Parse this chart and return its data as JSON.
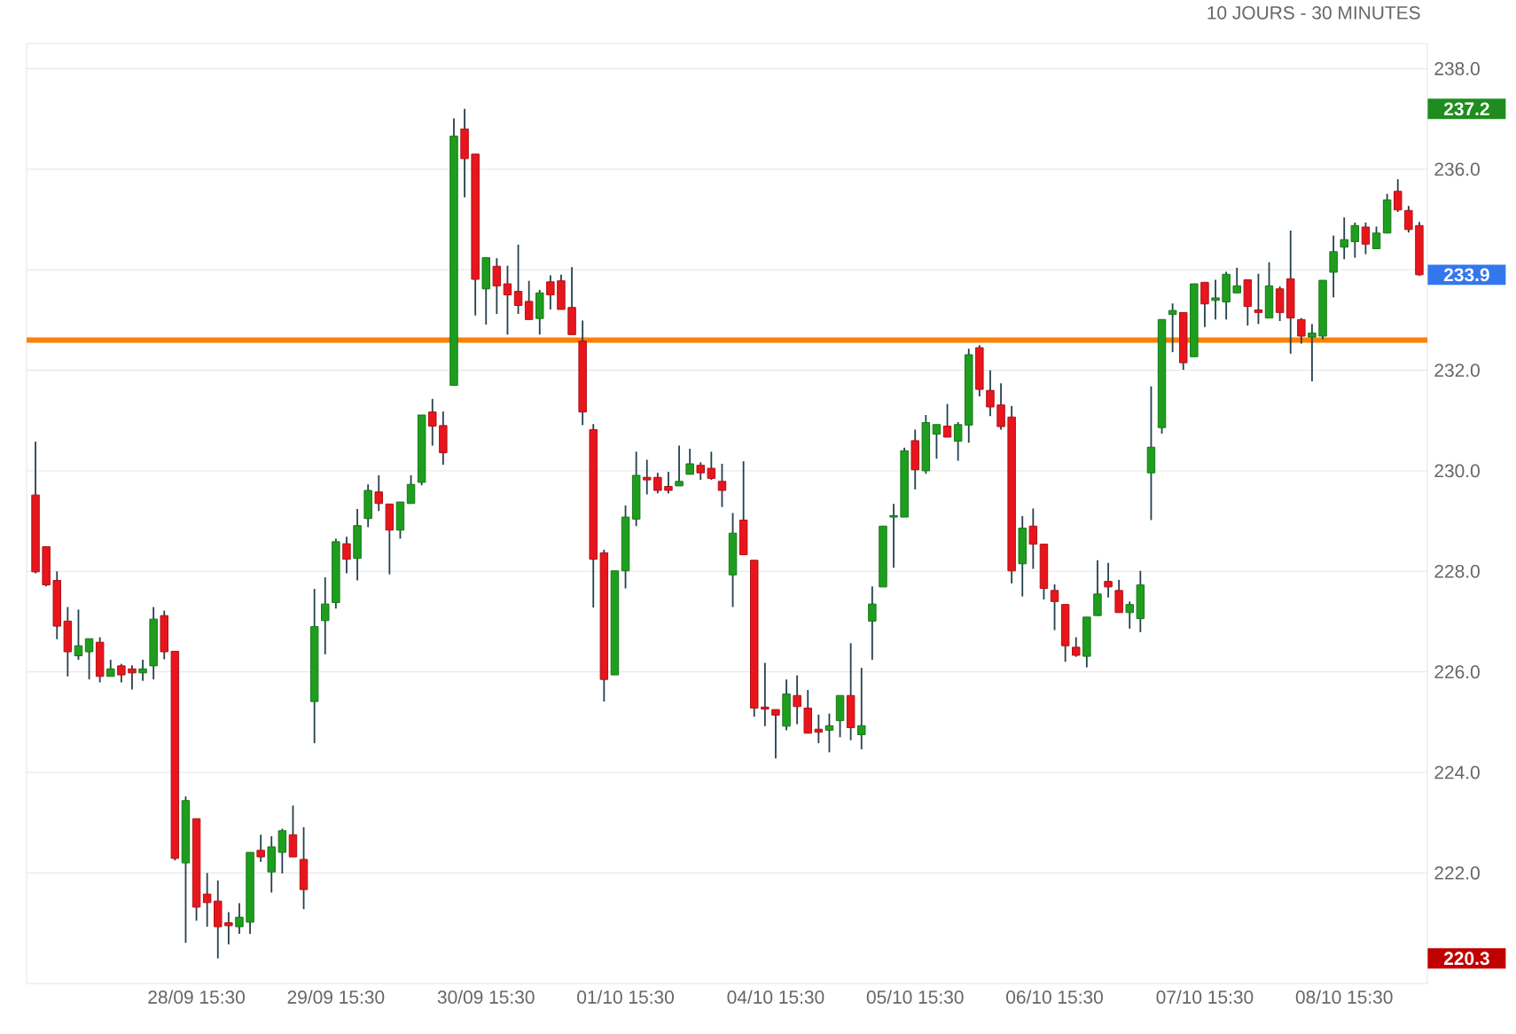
{
  "chart_data": {
    "type": "candlestick",
    "title": "10 JOURS - 30 MINUTES",
    "categories": [
      null,
      null,
      null,
      null,
      null,
      null,
      null,
      null,
      null,
      null,
      null,
      null,
      null,
      null,
      null,
      "28/09 15:30",
      null,
      null,
      null,
      null,
      null,
      null,
      null,
      null,
      null,
      null,
      null,
      null,
      "29/09 15:30",
      null,
      null,
      null,
      null,
      null,
      null,
      null,
      null,
      null,
      null,
      null,
      null,
      null,
      "30/09 15:30",
      null,
      null,
      null,
      null,
      null,
      null,
      null,
      null,
      null,
      null,
      null,
      null,
      "01/10 15:30",
      null,
      null,
      null,
      null,
      null,
      null,
      null,
      null,
      null,
      null,
      null,
      null,
      null,
      "04/10 15:30",
      null,
      null,
      null,
      null,
      null,
      null,
      null,
      null,
      null,
      null,
      null,
      null,
      "05/10 15:30",
      null,
      null,
      null,
      null,
      null,
      null,
      null,
      null,
      null,
      null,
      null,
      null,
      "06/10 15:30",
      null,
      null,
      null,
      null,
      null,
      null,
      null,
      null,
      null,
      null,
      null,
      null,
      null,
      "07/10 15:30",
      null,
      null,
      null,
      null,
      null,
      null,
      null,
      null,
      null,
      null,
      null,
      null,
      "08/10 15:30",
      null,
      null,
      null,
      null,
      null,
      null,
      null
    ],
    "ohlc": [
      [
        229.52,
        230.58,
        227.96,
        227.99
      ],
      [
        228.49,
        228.5,
        227.7,
        227.73
      ],
      [
        227.82,
        228.0,
        226.65,
        226.91
      ],
      [
        227.01,
        227.29,
        225.91,
        226.4
      ],
      [
        226.32,
        227.24,
        226.24,
        226.52
      ],
      [
        226.4,
        226.66,
        225.85,
        226.66
      ],
      [
        226.59,
        226.69,
        225.79,
        225.91
      ],
      [
        225.91,
        226.24,
        225.91,
        226.06
      ],
      [
        226.12,
        226.16,
        225.79,
        225.94
      ],
      [
        226.06,
        226.13,
        225.65,
        225.98
      ],
      [
        225.98,
        226.24,
        225.82,
        226.06
      ],
      [
        226.12,
        227.29,
        225.85,
        227.05
      ],
      [
        227.12,
        227.22,
        226.25,
        226.4
      ],
      [
        226.41,
        226.41,
        222.25,
        222.29
      ],
      [
        222.2,
        223.52,
        220.61,
        223.44
      ],
      [
        223.08,
        223.08,
        221.05,
        221.32
      ],
      [
        221.58,
        222.0,
        220.93,
        221.41
      ],
      [
        221.44,
        221.85,
        220.3,
        220.93
      ],
      [
        221.01,
        221.22,
        220.58,
        220.95
      ],
      [
        220.93,
        221.4,
        220.79,
        221.12
      ],
      [
        221.02,
        222.41,
        220.79,
        222.41
      ],
      [
        222.45,
        222.76,
        222.22,
        222.32
      ],
      [
        222.02,
        222.73,
        221.61,
        222.52
      ],
      [
        222.41,
        222.88,
        221.99,
        222.84
      ],
      [
        222.76,
        223.34,
        222.32,
        222.32
      ],
      [
        222.27,
        222.91,
        221.28,
        221.67
      ],
      [
        225.41,
        227.65,
        224.58,
        226.9
      ],
      [
        227.02,
        227.88,
        226.35,
        227.35
      ],
      [
        227.38,
        228.65,
        227.26,
        228.59
      ],
      [
        228.55,
        228.69,
        227.96,
        228.24
      ],
      [
        228.26,
        229.24,
        227.82,
        228.91
      ],
      [
        229.05,
        229.73,
        228.88,
        229.61
      ],
      [
        229.58,
        229.91,
        229.2,
        229.35
      ],
      [
        229.34,
        229.34,
        227.94,
        228.82
      ],
      [
        228.82,
        229.38,
        228.65,
        229.38
      ],
      [
        229.35,
        229.91,
        229.35,
        229.73
      ],
      [
        229.77,
        231.11,
        229.71,
        231.11
      ],
      [
        231.17,
        231.43,
        230.5,
        230.89
      ],
      [
        230.9,
        231.18,
        230.12,
        230.36
      ],
      [
        231.7,
        237.01,
        231.7,
        236.66
      ],
      [
        236.8,
        237.2,
        235.44,
        236.21
      ],
      [
        236.3,
        236.3,
        233.09,
        233.81
      ],
      [
        233.62,
        234.24,
        232.91,
        234.24
      ],
      [
        234.07,
        234.23,
        233.12,
        233.68
      ],
      [
        233.72,
        234.08,
        232.71,
        233.5
      ],
      [
        233.57,
        234.5,
        233.12,
        233.29
      ],
      [
        233.37,
        233.78,
        233.01,
        233.01
      ],
      [
        233.03,
        233.6,
        232.71,
        233.54
      ],
      [
        233.76,
        233.89,
        233.21,
        233.5
      ],
      [
        233.78,
        233.9,
        233.21,
        233.21
      ],
      [
        233.25,
        234.05,
        232.71,
        232.71
      ],
      [
        232.58,
        232.99,
        230.91,
        231.17
      ],
      [
        230.82,
        230.93,
        227.28,
        228.24
      ],
      [
        228.37,
        228.43,
        225.41,
        225.85
      ],
      [
        225.94,
        228.01,
        225.94,
        228.01
      ],
      [
        228.01,
        229.31,
        227.66,
        229.08
      ],
      [
        229.04,
        230.38,
        228.9,
        229.91
      ],
      [
        229.87,
        230.22,
        229.53,
        229.82
      ],
      [
        229.87,
        229.96,
        229.55,
        229.61
      ],
      [
        229.69,
        229.98,
        229.55,
        229.61
      ],
      [
        229.7,
        230.5,
        229.7,
        229.79
      ],
      [
        229.93,
        230.44,
        229.93,
        230.14
      ],
      [
        230.11,
        230.17,
        229.82,
        229.96
      ],
      [
        230.05,
        230.38,
        229.82,
        229.85
      ],
      [
        229.79,
        230.14,
        229.28,
        229.61
      ],
      [
        227.93,
        229.16,
        227.29,
        228.76
      ],
      [
        229.02,
        230.19,
        228.33,
        228.33
      ],
      [
        228.22,
        228.22,
        225.11,
        225.28
      ],
      [
        225.3,
        226.18,
        224.92,
        225.26
      ],
      [
        225.25,
        225.25,
        224.28,
        225.14
      ],
      [
        224.92,
        225.85,
        224.84,
        225.56
      ],
      [
        225.53,
        225.93,
        224.96,
        225.31
      ],
      [
        225.28,
        225.64,
        224.78,
        224.78
      ],
      [
        224.86,
        225.15,
        224.58,
        224.8
      ],
      [
        224.84,
        225.17,
        224.4,
        224.93
      ],
      [
        225.03,
        225.53,
        224.7,
        225.53
      ],
      [
        225.53,
        226.57,
        224.64,
        224.89
      ],
      [
        224.75,
        226.08,
        224.46,
        224.93
      ],
      [
        227.01,
        227.7,
        226.24,
        227.35
      ],
      [
        227.69,
        228.9,
        227.69,
        228.9
      ],
      [
        229.08,
        229.34,
        228.07,
        229.11
      ],
      [
        229.08,
        230.46,
        229.08,
        230.4
      ],
      [
        230.6,
        230.82,
        229.63,
        230.02
      ],
      [
        230.0,
        231.11,
        229.94,
        230.96
      ],
      [
        230.73,
        230.92,
        230.24,
        230.92
      ],
      [
        230.89,
        231.33,
        230.67,
        230.67
      ],
      [
        230.59,
        230.97,
        230.2,
        230.92
      ],
      [
        230.91,
        232.43,
        230.56,
        232.31
      ],
      [
        232.45,
        232.5,
        231.48,
        231.62
      ],
      [
        231.6,
        232.0,
        231.09,
        231.27
      ],
      [
        231.31,
        231.74,
        230.82,
        230.88
      ],
      [
        231.07,
        231.29,
        227.76,
        228.01
      ],
      [
        228.15,
        229.1,
        227.5,
        228.86
      ],
      [
        228.9,
        229.25,
        228.05,
        228.54
      ],
      [
        228.54,
        228.54,
        227.44,
        227.66
      ],
      [
        227.62,
        227.74,
        226.83,
        227.4
      ],
      [
        227.34,
        227.34,
        226.2,
        226.52
      ],
      [
        226.49,
        226.69,
        226.3,
        226.33
      ],
      [
        226.31,
        227.09,
        226.09,
        227.09
      ],
      [
        227.12,
        228.22,
        227.12,
        227.55
      ],
      [
        227.8,
        228.17,
        227.48,
        227.69
      ],
      [
        227.62,
        227.83,
        227.18,
        227.18
      ],
      [
        227.18,
        227.4,
        226.86,
        227.34
      ],
      [
        227.06,
        228.01,
        226.79,
        227.73
      ],
      [
        229.96,
        231.68,
        229.02,
        230.47
      ],
      [
        230.86,
        233.01,
        230.74,
        233.01
      ],
      [
        233.11,
        233.33,
        232.36,
        233.19
      ],
      [
        233.15,
        233.15,
        232.01,
        232.15
      ],
      [
        232.27,
        233.72,
        232.27,
        233.72
      ],
      [
        233.75,
        233.75,
        232.86,
        233.32
      ],
      [
        233.39,
        233.8,
        233.01,
        233.44
      ],
      [
        233.36,
        233.96,
        233.01,
        233.91
      ],
      [
        233.54,
        234.04,
        233.54,
        233.68
      ],
      [
        233.8,
        233.8,
        232.89,
        233.27
      ],
      [
        233.2,
        233.92,
        232.92,
        233.15
      ],
      [
        233.04,
        234.15,
        233.04,
        233.68
      ],
      [
        233.62,
        233.67,
        232.98,
        233.15
      ],
      [
        233.82,
        234.78,
        232.33,
        233.04
      ],
      [
        233.01,
        233.04,
        232.53,
        232.68
      ],
      [
        232.66,
        232.92,
        231.78,
        232.74
      ],
      [
        232.68,
        233.79,
        232.62,
        233.79
      ],
      [
        233.95,
        234.68,
        233.45,
        234.36
      ],
      [
        234.45,
        235.04,
        234.21,
        234.6
      ],
      [
        234.56,
        234.94,
        234.24,
        234.88
      ],
      [
        234.85,
        234.94,
        234.31,
        234.51
      ],
      [
        234.42,
        234.86,
        234.42,
        234.73
      ],
      [
        234.73,
        235.51,
        234.73,
        235.39
      ],
      [
        235.56,
        235.8,
        235.15,
        235.19
      ],
      [
        235.18,
        235.27,
        234.74,
        234.8
      ],
      [
        234.88,
        234.95,
        233.88,
        233.9
      ]
    ],
    "ylim": [
      219.8,
      238.5
    ],
    "yticks": [
      {
        "value": 222,
        "label": "222.0"
      },
      {
        "value": 224,
        "label": "224.0"
      },
      {
        "value": 226,
        "label": "226.0"
      },
      {
        "value": 228,
        "label": "228.0"
      },
      {
        "value": 230,
        "label": "230.0"
      },
      {
        "value": 232,
        "label": "232.0"
      },
      {
        "value": 234,
        "label": null
      },
      {
        "value": 236,
        "label": "236.0"
      },
      {
        "value": 238,
        "label": "238.0"
      }
    ],
    "grid": "y",
    "ref_lines": [
      {
        "axis": "y",
        "value": 232.6,
        "color": "#ff8000"
      }
    ],
    "annotations": [
      "237.2",
      "233.9",
      "220.3"
    ]
  }
}
